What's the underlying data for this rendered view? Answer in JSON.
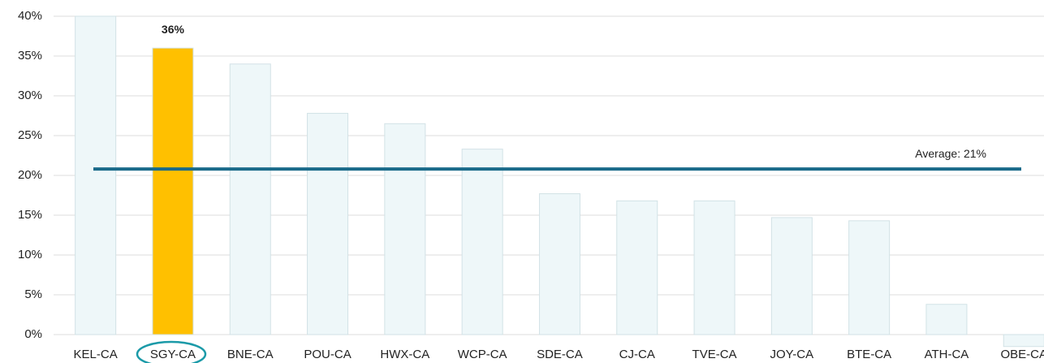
{
  "chart_data": {
    "type": "bar",
    "categories": [
      "KEL-CA",
      "SGY-CA",
      "BNE-CA",
      "POU-CA",
      "HWX-CA",
      "WCP-CA",
      "SDE-CA",
      "CJ-CA",
      "TVE-CA",
      "JOY-CA",
      "BTE-CA",
      "ATH-CA",
      "OBE-CA"
    ],
    "values": [
      40,
      36,
      34,
      27.8,
      26.5,
      23.3,
      17.7,
      16.8,
      16.8,
      14.7,
      14.3,
      3.8,
      -1.5
    ],
    "value_labels": [
      null,
      "36%",
      null,
      null,
      null,
      null,
      null,
      null,
      null,
      null,
      null,
      null,
      null
    ],
    "colors": [
      "#eef7f9",
      "#ffc000",
      "#eef7f9",
      "#eef7f9",
      "#eef7f9",
      "#eef7f9",
      "#eef7f9",
      "#eef7f9",
      "#eef7f9",
      "#eef7f9",
      "#eef7f9",
      "#eef7f9",
      "#eef7f9"
    ],
    "ylim": [
      -1.5,
      40
    ],
    "yticks": [
      {
        "value": 0,
        "label": "0%"
      },
      {
        "value": 5,
        "label": "5%"
      },
      {
        "value": 10,
        "label": "10%"
      },
      {
        "value": 15,
        "label": "15%"
      },
      {
        "value": 20,
        "label": "20%"
      },
      {
        "value": 25,
        "label": "25%"
      },
      {
        "value": 30,
        "label": "30%"
      },
      {
        "value": 35,
        "label": "35%"
      },
      {
        "value": 40,
        "label": "40%"
      }
    ],
    "grid": true,
    "average": {
      "value": 20.8,
      "label": "Average: 21%",
      "color": "#1a6a8a"
    }
  }
}
